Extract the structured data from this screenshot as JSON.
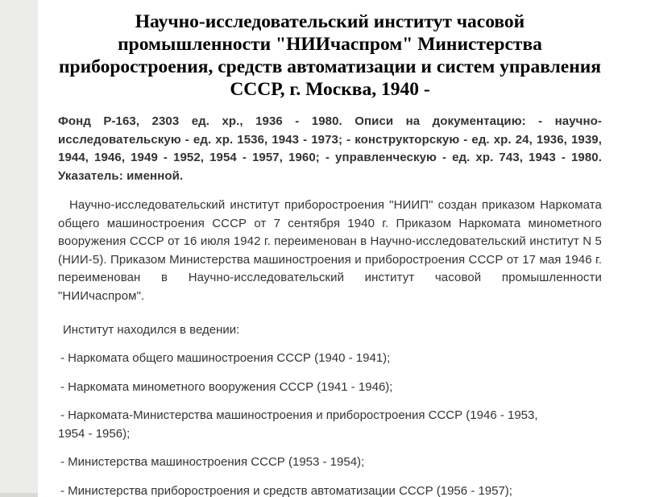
{
  "page": {
    "background_color": "#ffffff",
    "left_margin_color": "#ececea",
    "left_margin_bottom_color": "#d9d9d6",
    "title_color": "#000000",
    "body_text_color": "#333333"
  },
  "document": {
    "title": "Научно-исследовательский институт часовой промышленности \"НИИчаспром\" Министерства приборостроения, средств автоматизации и систем управления СССР, г. Москва, 1940 -",
    "fond_summary": "Фонд Р-163, 2303 ед. хр., 1936 - 1980. Описи на документацию: - научно-исследовательскую - ед. хр. 1536, 1943 - 1973; - конструкторскую - ед. хр. 24, 1936, 1939, 1944, 1946, 1949 - 1952, 1954 - 1957, 1960; - управленческую - ед. хр. 743, 1943 - 1980. Указатель: именной.",
    "history": "Научно-исследовательский институт приборостроения \"НИИП\" создан приказом Наркомата общего машиностроения СССР от 7 сентября 1940 г. Приказом Наркомата минометного вооружения СССР от 16 июля 1942 г. переименован в Научно-исследовательский институт N 5 (НИИ-5). Приказом Министерства машиностроения и приборостроения СССР от 17 мая 1946 г. переименован в Научно-исследовательский институт часовой промышленности \"НИИчаспром\".",
    "subordination_heading": "Институт находился в ведении:",
    "subordination_items": [
      "- Наркомата общего машиностроения СССР (1940 - 1941);",
      "- Наркомата минометного вооружения СССР (1941 - 1946);",
      "- Наркомата-Министерства машиностроения и приборостроения СССР (1946 - 1953,\n1954 - 1956);",
      "- Министерства машиностроения СССР (1953 - 1954);",
      "- Министерства приборостроения и средств автоматизации СССР (1956 - 1957);"
    ]
  }
}
